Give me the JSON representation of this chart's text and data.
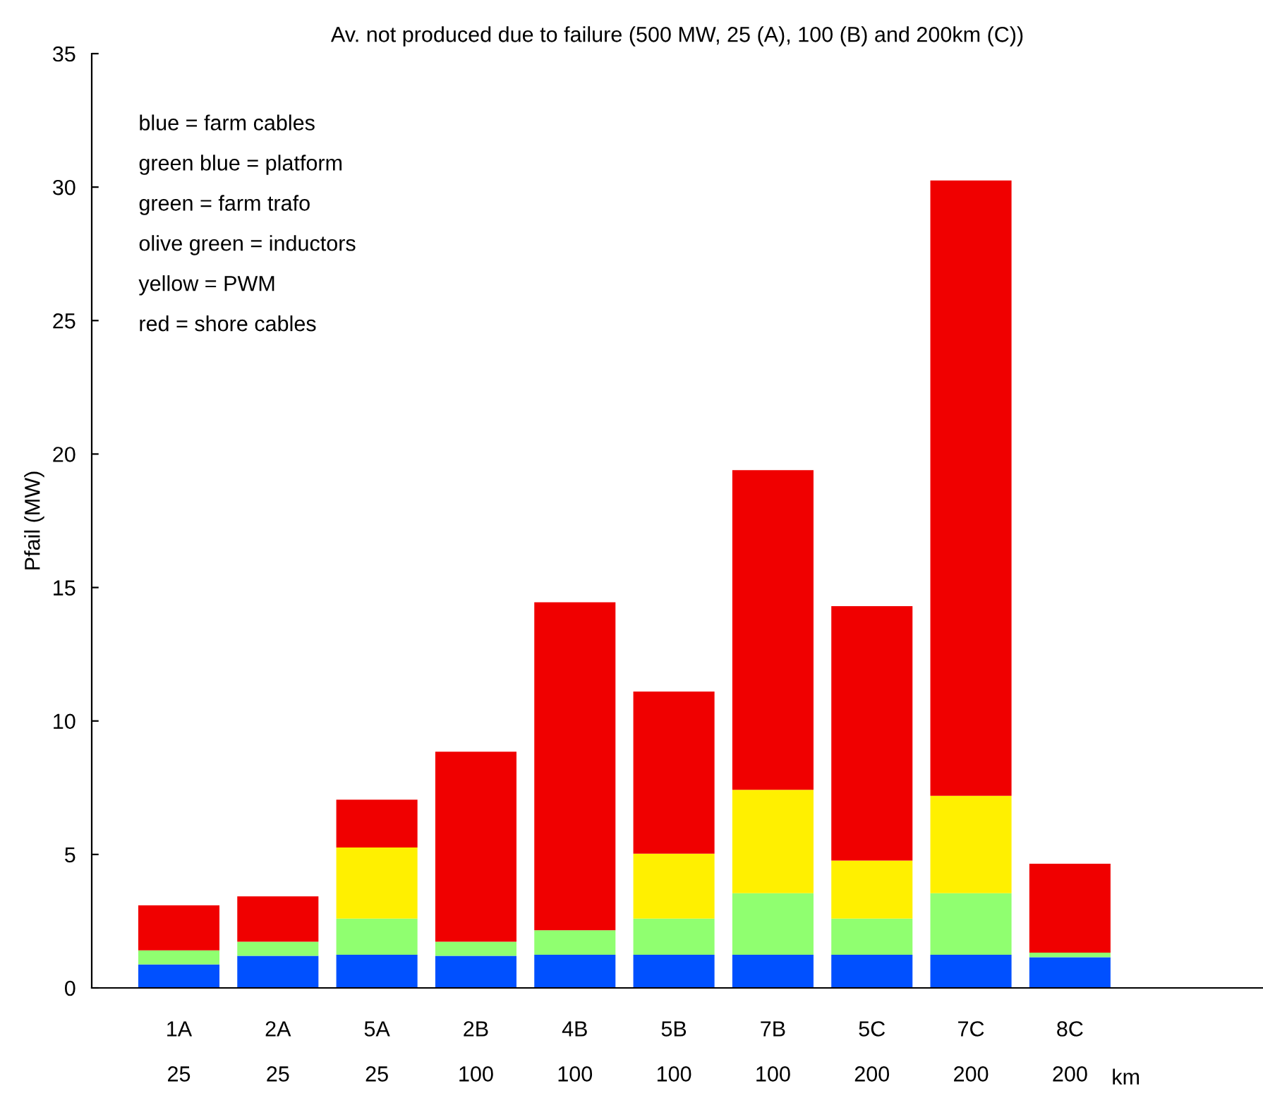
{
  "chart_data": {
    "type": "bar",
    "stacked": true,
    "title": "Av. not produced due to failure (500 MW, 25 (A), 100 (B) and 200km (C))",
    "ylabel": "Pfail (MW)",
    "categories": [
      "1A\n25",
      "2A\n25",
      "5A\n25",
      "2B\n100",
      "4B\n100",
      "5B\n100",
      "7B\n100",
      "5C\n200",
      "7C\n200",
      "8C\n200"
    ],
    "series": [
      {
        "color": "#0050ff",
        "values": [
          0.88,
          1.2,
          1.24,
          1.2,
          1.24,
          1.24,
          1.24,
          1.24,
          1.24,
          1.15
        ]
      },
      {
        "color": "#90ff70",
        "values": [
          0.53,
          0.53,
          1.36,
          0.53,
          0.92,
          1.36,
          2.31,
          1.36,
          2.31,
          0.17
        ]
      },
      {
        "color": "#fff000",
        "values": [
          0,
          0,
          2.66,
          0,
          0,
          2.43,
          3.87,
          2.17,
          3.65,
          0
        ]
      },
      {
        "color": "#f00000",
        "values": [
          1.68,
          1.7,
          1.79,
          7.12,
          12.29,
          6.07,
          11.98,
          9.53,
          23.05,
          3.33
        ]
      }
    ],
    "ylim": [
      0,
      35
    ],
    "yticks": [
      0,
      5,
      10,
      15,
      20,
      25,
      30,
      35
    ],
    "grid": false,
    "legend": false,
    "annotations": [
      "blue = farm cables",
      "green blue = platform",
      "green = farm trafo",
      "olive green = inductors",
      "yellow = PWM",
      "red = shore cables",
      "km"
    ]
  }
}
